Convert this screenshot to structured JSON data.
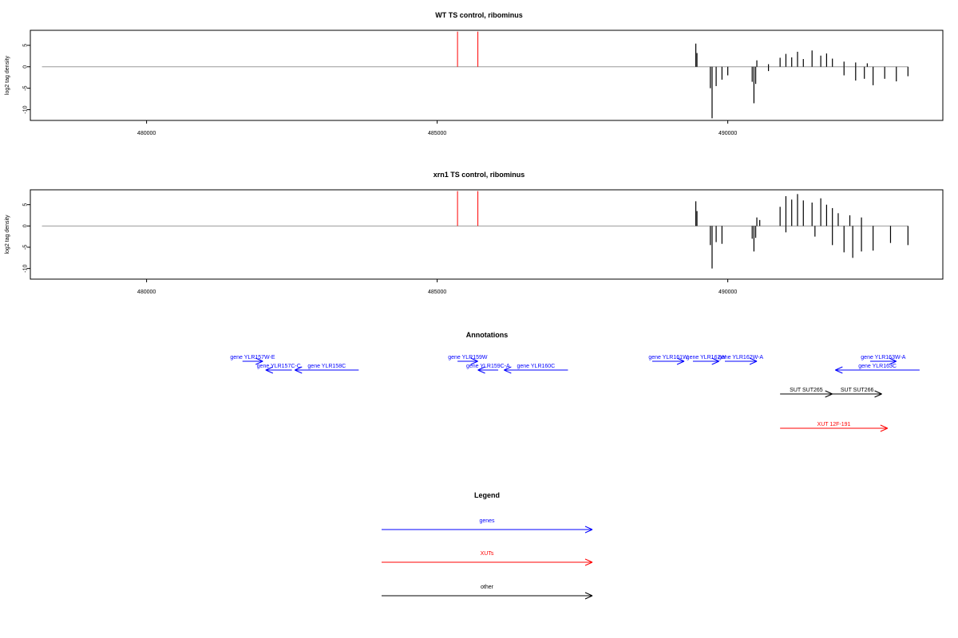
{
  "colors": {
    "gene": "#0000ff",
    "xut": "#ff0000",
    "other": "#000000",
    "frame": "#000000",
    "baseline": "#999999",
    "marker": "#ff0000"
  },
  "chart_data": [
    {
      "type": "bar",
      "title": "WT TS control, ribominus",
      "ylabel": "log2 tag density",
      "xlim": [
        478000,
        493700
      ],
      "ylim": [
        -12.5,
        8.5
      ],
      "xticks": [
        480000,
        485000,
        490000
      ],
      "xtick_labels": [
        "480000",
        "485000",
        "490000"
      ],
      "yticks": [
        -10,
        -5,
        0,
        5
      ],
      "ytick_labels": [
        "-10",
        "-5",
        "0",
        "5"
      ],
      "baseline_range": [
        478200,
        493100
      ],
      "markers": [
        485350,
        485700
      ],
      "signal_plus": [
        [
          489450,
          5.4
        ],
        [
          489470,
          3.2
        ],
        [
          490500,
          1.5
        ],
        [
          490700,
          0.6
        ],
        [
          490900,
          2.1
        ],
        [
          491000,
          3.0
        ],
        [
          491100,
          2.2
        ],
        [
          491200,
          3.5
        ],
        [
          491300,
          1.8
        ],
        [
          491450,
          3.8
        ],
        [
          491600,
          2.6
        ],
        [
          491700,
          3.1
        ],
        [
          491800,
          1.9
        ],
        [
          492000,
          1.2
        ],
        [
          492200,
          1.0
        ],
        [
          492400,
          0.8
        ]
      ],
      "signal_minus": [
        [
          489700,
          -5.0
        ],
        [
          489730,
          -12.0
        ],
        [
          489800,
          -4.5
        ],
        [
          489900,
          -3.0
        ],
        [
          490000,
          -2.0
        ],
        [
          490420,
          -3.5
        ],
        [
          490450,
          -8.5
        ],
        [
          490480,
          -4.0
        ],
        [
          490700,
          -1.0
        ],
        [
          492000,
          -2.0
        ],
        [
          492200,
          -3.2
        ],
        [
          492350,
          -2.8
        ],
        [
          492500,
          -4.3
        ],
        [
          492700,
          -2.8
        ],
        [
          492900,
          -3.4
        ],
        [
          493100,
          -2.2
        ]
      ]
    },
    {
      "type": "bar",
      "title": "xrn1 TS control, ribominus",
      "ylabel": "log2 tag density",
      "xlim": [
        478000,
        493700
      ],
      "ylim": [
        -12.5,
        8.5
      ],
      "xticks": [
        480000,
        485000,
        490000
      ],
      "xtick_labels": [
        "480000",
        "485000",
        "490000"
      ],
      "yticks": [
        -10,
        -5,
        0,
        5
      ],
      "ytick_labels": [
        "-10",
        "-5",
        "0",
        "5"
      ],
      "baseline_range": [
        478200,
        493100
      ],
      "markers": [
        485350,
        485700
      ],
      "signal_plus": [
        [
          489450,
          5.8
        ],
        [
          489470,
          3.5
        ],
        [
          490500,
          2.0
        ],
        [
          490550,
          1.4
        ],
        [
          490900,
          4.5
        ],
        [
          491000,
          7.0
        ],
        [
          491100,
          6.2
        ],
        [
          491200,
          7.5
        ],
        [
          491300,
          6.0
        ],
        [
          491450,
          5.5
        ],
        [
          491600,
          6.5
        ],
        [
          491700,
          5.0
        ],
        [
          491800,
          4.2
        ],
        [
          491900,
          3.0
        ],
        [
          492100,
          2.5
        ],
        [
          492300,
          2.0
        ]
      ],
      "signal_minus": [
        [
          489700,
          -4.5
        ],
        [
          489730,
          -10.0
        ],
        [
          489800,
          -3.8
        ],
        [
          489900,
          -4.2
        ],
        [
          490420,
          -3.0
        ],
        [
          490450,
          -6.0
        ],
        [
          490480,
          -2.8
        ],
        [
          491000,
          -1.5
        ],
        [
          491500,
          -2.5
        ],
        [
          491800,
          -4.5
        ],
        [
          492000,
          -6.2
        ],
        [
          492150,
          -7.5
        ],
        [
          492300,
          -6.0
        ],
        [
          492500,
          -5.8
        ],
        [
          492800,
          -4.0
        ],
        [
          493100,
          -4.5
        ]
      ]
    }
  ],
  "annotations": {
    "title": "Annotations",
    "features": [
      {
        "label": "gene YLR157W-E",
        "kind": "gene",
        "strand": "+",
        "start": 481650,
        "end": 482000,
        "row": 0
      },
      {
        "label": "gene YLR157C-C",
        "kind": "gene",
        "strand": "-",
        "start": 482050,
        "end": 482500,
        "row": 1
      },
      {
        "label": "gene YLR158C",
        "kind": "gene",
        "strand": "-",
        "start": 482550,
        "end": 483650,
        "row": 1
      },
      {
        "label": "gene YLR159W",
        "kind": "gene",
        "strand": "+",
        "start": 485350,
        "end": 485700,
        "row": 0
      },
      {
        "label": "gene YLR159C-A",
        "kind": "gene",
        "strand": "-",
        "start": 485700,
        "end": 486050,
        "row": 1
      },
      {
        "label": "gene YLR160C",
        "kind": "gene",
        "strand": "-",
        "start": 486150,
        "end": 487250,
        "row": 1
      },
      {
        "label": "gene YLR161W",
        "kind": "gene",
        "strand": "+",
        "start": 488700,
        "end": 489250,
        "row": 0
      },
      {
        "label": "gene YLR162W",
        "kind": "gene",
        "strand": "+",
        "start": 489400,
        "end": 489850,
        "row": 0
      },
      {
        "label": "gene YLR162W-A",
        "kind": "gene",
        "strand": "+",
        "start": 489950,
        "end": 490500,
        "row": 0
      },
      {
        "label": "gene YLR163W-A",
        "kind": "gene",
        "strand": "+",
        "start": 492450,
        "end": 492900,
        "row": 0
      },
      {
        "label": "gene YLR163C",
        "kind": "gene",
        "strand": "-",
        "start": 491850,
        "end": 493300,
        "row": 1
      },
      {
        "label": "SUT SUT265",
        "kind": "other",
        "strand": "+",
        "start": 490900,
        "end": 491800,
        "row": 2
      },
      {
        "label": "SUT SUT266",
        "kind": "other",
        "strand": "+",
        "start": 491800,
        "end": 492650,
        "row": 2
      },
      {
        "label": "XUT 12F-191",
        "kind": "xut",
        "strand": "+",
        "start": 490900,
        "end": 492750,
        "row": 3
      }
    ]
  },
  "legend": {
    "title": "Legend",
    "items": [
      {
        "label": "genes",
        "kind": "gene"
      },
      {
        "label": "XUTs",
        "kind": "xut"
      },
      {
        "label": "other",
        "kind": "other"
      }
    ]
  }
}
